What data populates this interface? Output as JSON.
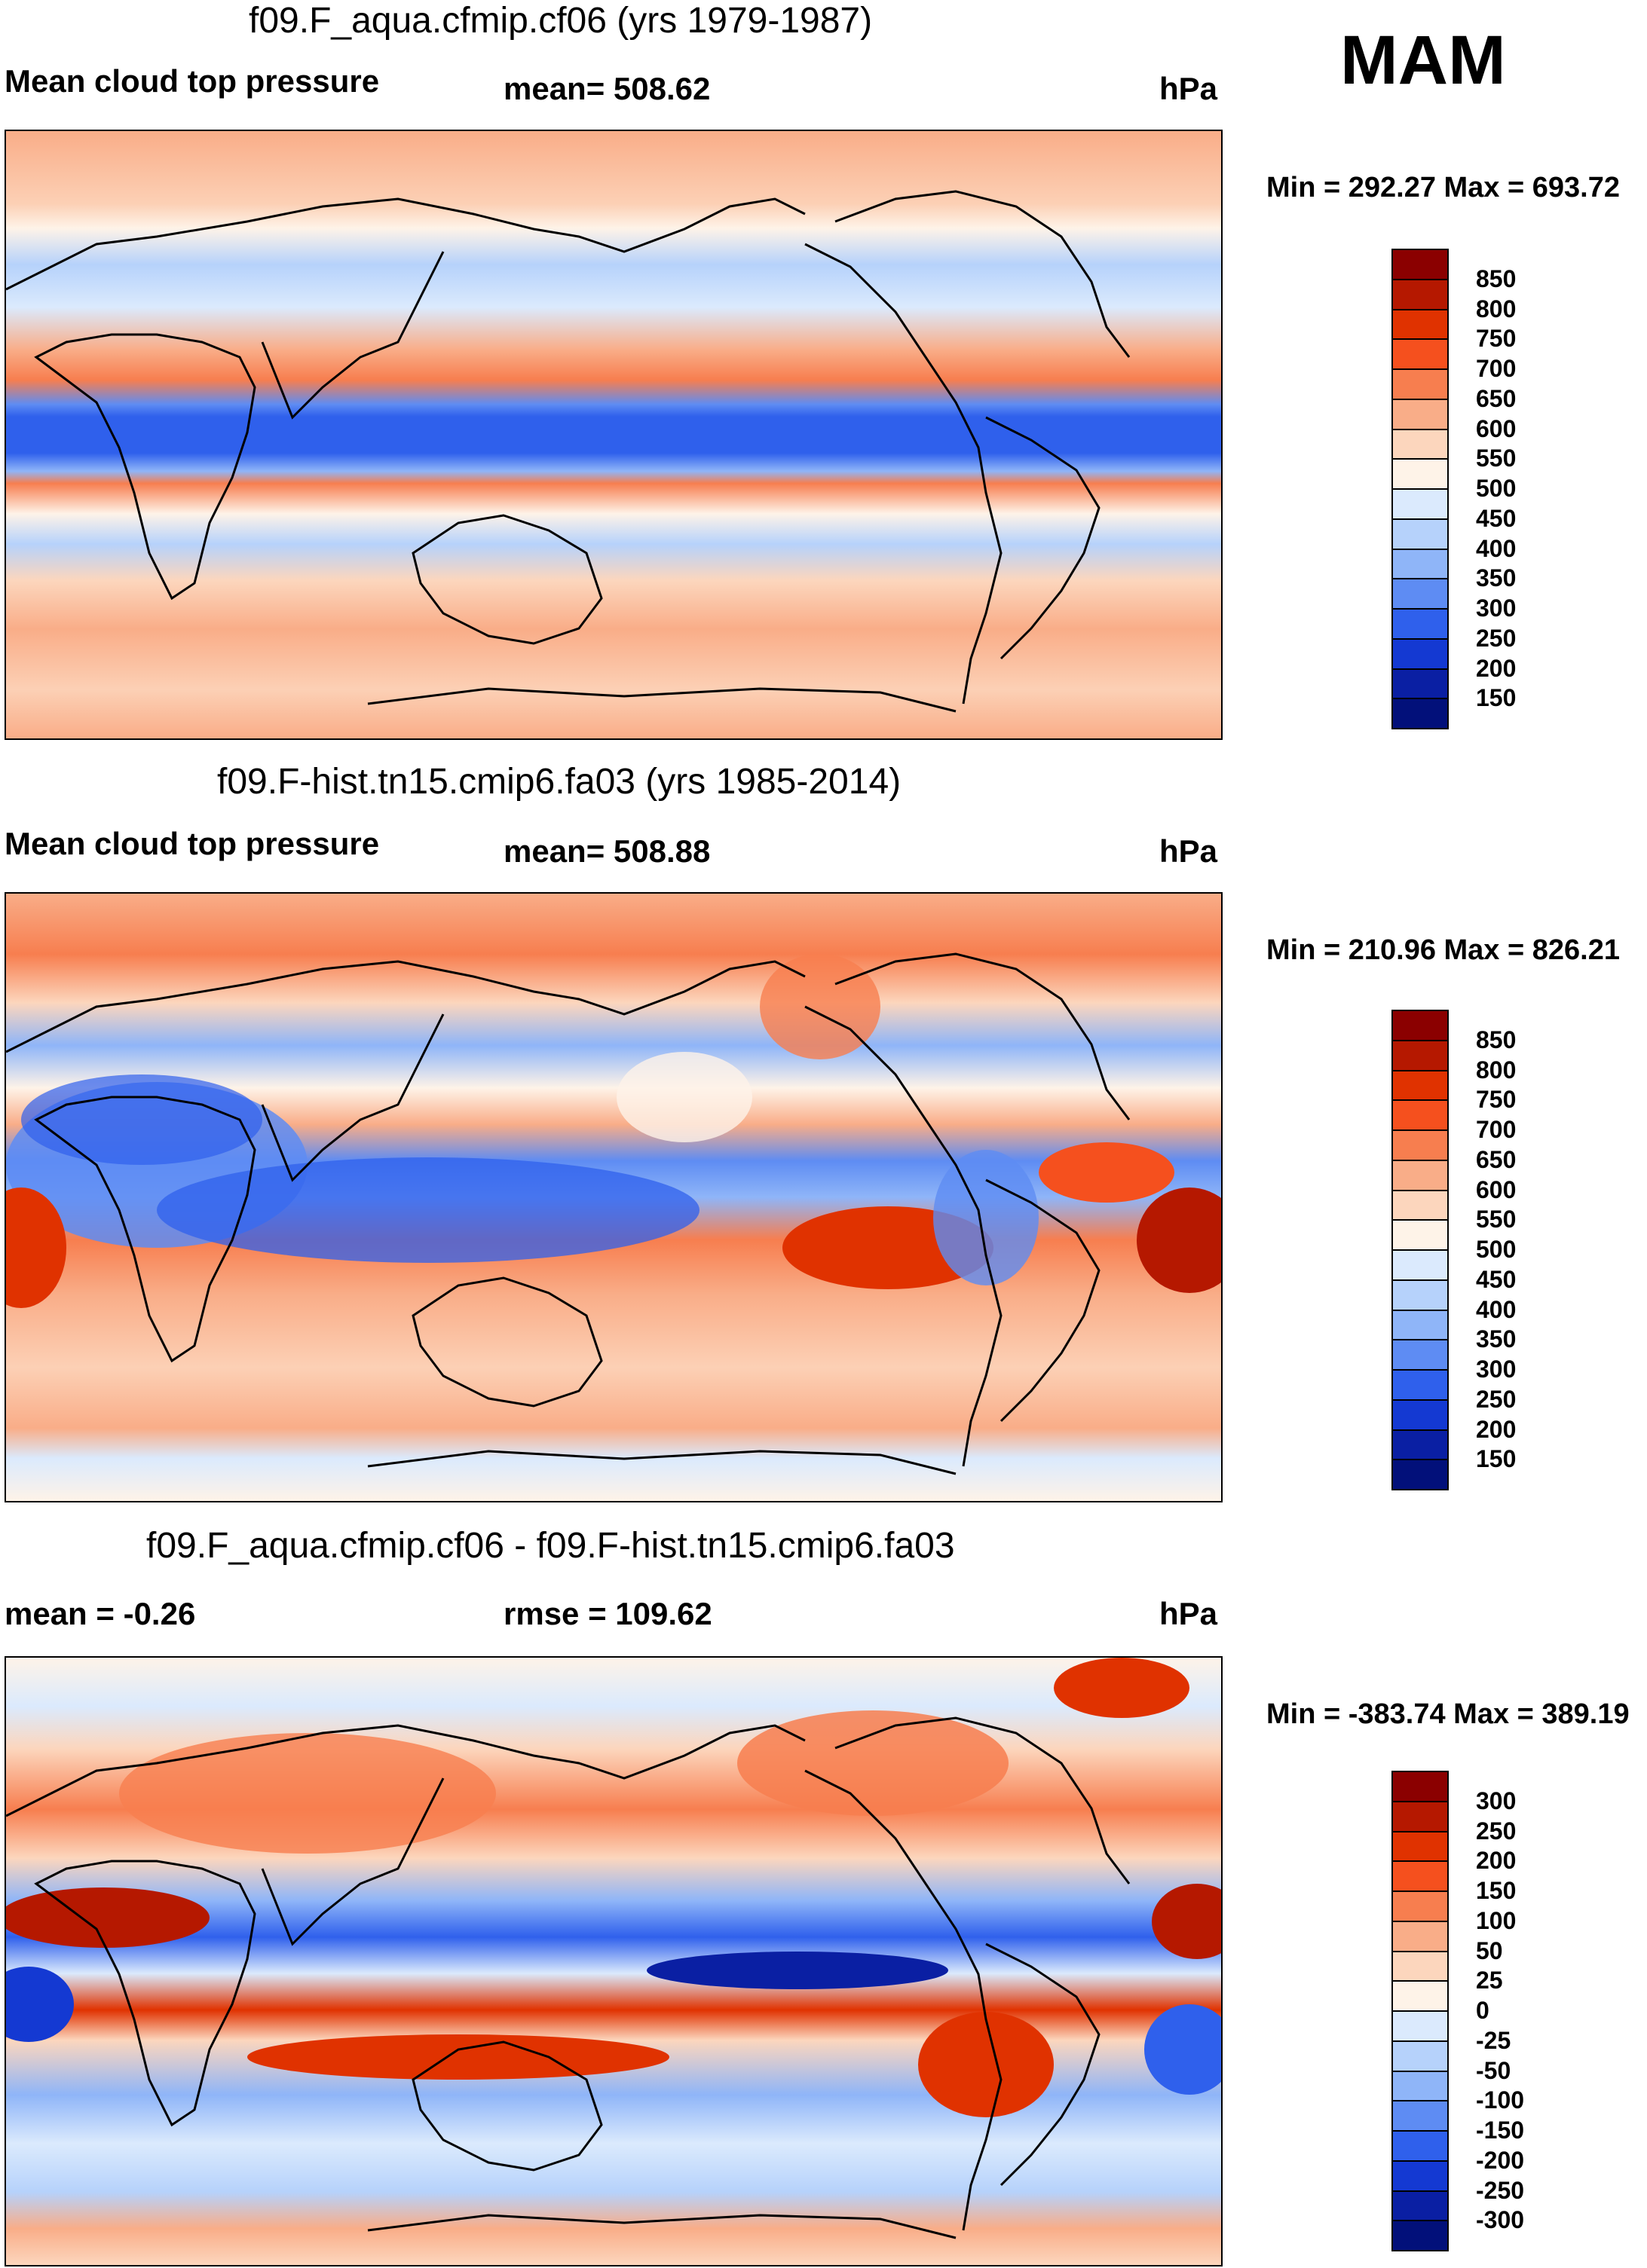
{
  "season": "MAM",
  "units": "hPa",
  "panels": [
    {
      "title": "f09.F_aqua.cfmip.cf06 (yrs 1979-1987)",
      "left_label": "Mean cloud top pressure",
      "center_label": "mean= 508.62",
      "right_label": "hPa",
      "minmax": "Min = 292.27 Max = 693.72"
    },
    {
      "title": "f09.F-hist.tn15.cmip6.fa03 (yrs 1985-2014)",
      "left_label": "Mean cloud top pressure",
      "center_label": "mean= 508.88",
      "right_label": "hPa",
      "minmax": "Min = 210.96 Max = 826.21"
    },
    {
      "title": "f09.F_aqua.cfmip.cf06 - f09.F-hist.tn15.cmip6.fa03",
      "left_label": "mean =  -0.26",
      "center_label": "rmse = 109.62",
      "right_label": "hPa",
      "minmax": "Min = -383.74 Max = 389.19"
    }
  ],
  "colorbars": {
    "absolute": {
      "labels": [
        "850",
        "800",
        "750",
        "700",
        "650",
        "600",
        "550",
        "500",
        "450",
        "400",
        "350",
        "300",
        "250",
        "200",
        "150"
      ],
      "colors": [
        "#8b0000",
        "#b51800",
        "#e03200",
        "#f5501e",
        "#f77e4f",
        "#f9ad88",
        "#fcd6bd",
        "#fef3e8",
        "#dbeafd",
        "#b6d2fb",
        "#8fb5f8",
        "#5e8cf3",
        "#2f60ec",
        "#1439d2",
        "#0a1fa3",
        "#02107a"
      ]
    },
    "difference": {
      "labels": [
        "300",
        "250",
        "200",
        "150",
        "100",
        "50",
        "25",
        "0",
        "-25",
        "-50",
        "-100",
        "-150",
        "-200",
        "-250",
        "-300"
      ],
      "colors": [
        "#8b0000",
        "#b51800",
        "#e03200",
        "#f5501e",
        "#f77e4f",
        "#f9ad88",
        "#fcd6bd",
        "#fef3e8",
        "#dbeafd",
        "#b6d2fb",
        "#8fb5f8",
        "#5e8cf3",
        "#2f60ec",
        "#1439d2",
        "#0a1fa3",
        "#02107a"
      ]
    }
  },
  "chart_data": [
    {
      "type": "heatmap",
      "title": "f09.F_aqua.cfmip.cf06 (yrs 1979-1987)",
      "variable": "Mean cloud top pressure",
      "units": "hPa",
      "mean": 508.62,
      "min": 292.27,
      "max": 693.72,
      "contour_levels": [
        150,
        200,
        250,
        300,
        350,
        400,
        450,
        500,
        550,
        600,
        650,
        700,
        750,
        800,
        850
      ],
      "lon_range": [
        0,
        360
      ],
      "lat_range": [
        -90,
        90
      ]
    },
    {
      "type": "heatmap",
      "title": "f09.F-hist.tn15.cmip6.fa03 (yrs 1985-2014)",
      "variable": "Mean cloud top pressure",
      "units": "hPa",
      "mean": 508.88,
      "min": 210.96,
      "max": 826.21,
      "contour_levels": [
        150,
        200,
        250,
        300,
        350,
        400,
        450,
        500,
        550,
        600,
        650,
        700,
        750,
        800,
        850
      ],
      "lon_range": [
        0,
        360
      ],
      "lat_range": [
        -90,
        90
      ]
    },
    {
      "type": "heatmap",
      "title": "f09.F_aqua.cfmip.cf06 - f09.F-hist.tn15.cmip6.fa03",
      "units": "hPa",
      "mean": -0.26,
      "rmse": 109.62,
      "min": -383.74,
      "max": 389.19,
      "contour_levels": [
        -300,
        -250,
        -200,
        -150,
        -100,
        -50,
        -25,
        0,
        25,
        50,
        100,
        150,
        200,
        250,
        300
      ],
      "lon_range": [
        0,
        360
      ],
      "lat_range": [
        -90,
        90
      ]
    }
  ]
}
